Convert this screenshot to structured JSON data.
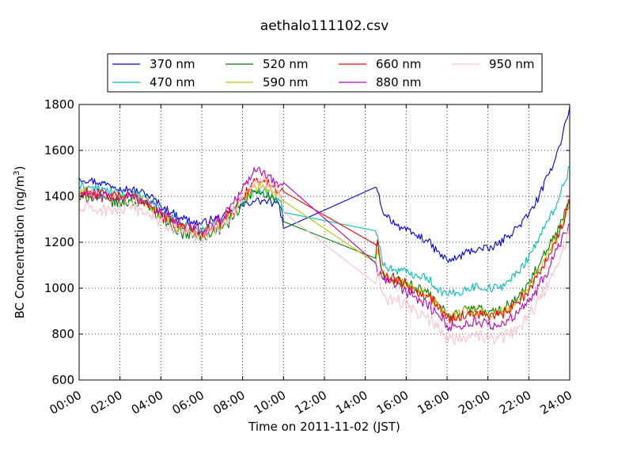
{
  "chart_data": {
    "type": "line",
    "title": "aethalo111102.csv",
    "xlabel": "Time on 2011-11-02 (JST)",
    "ylabel": "BC Concentration (ng/m",
    "ylabel_sup": "3",
    "ylabel_end": ")",
    "xlim": [
      0,
      24
    ],
    "ylim": [
      600,
      1800
    ],
    "grid": true,
    "legend_placement": "top-center",
    "x_ticks": [
      0,
      2,
      4,
      6,
      8,
      10,
      12,
      14,
      16,
      18,
      20,
      22,
      24
    ],
    "x_tick_labels": [
      "00:00",
      "02:00",
      "04:00",
      "06:00",
      "08:00",
      "10:00",
      "12:00",
      "14:00",
      "16:00",
      "18:00",
      "20:00",
      "22:00",
      "24:00"
    ],
    "y_ticks": [
      600,
      800,
      1000,
      1200,
      1400,
      1600,
      1800
    ],
    "y_tick_labels": [
      "600",
      "800",
      "1000",
      "1200",
      "1400",
      "1600",
      "1800"
    ],
    "series": [
      {
        "name": "370 nm",
        "color": "#0000ff",
        "noise": 18,
        "x": [
          0,
          0.5,
          1,
          1.5,
          2,
          2.5,
          3,
          3.5,
          4,
          4.5,
          5,
          5.5,
          6,
          6.5,
          7,
          7.5,
          8,
          8.5,
          9,
          9.5,
          9.8,
          10.0,
          14.5,
          14.6,
          14.8,
          15,
          15.5,
          16,
          16.5,
          17,
          17.5,
          18,
          18.5,
          19,
          19.5,
          20,
          20.5,
          21,
          21.5,
          22,
          22.5,
          23,
          23.5,
          24
        ],
        "y": [
          1480,
          1470,
          1460,
          1450,
          1440,
          1430,
          1420,
          1400,
          1360,
          1330,
          1310,
          1290,
          1280,
          1300,
          1310,
          1330,
          1360,
          1380,
          1380,
          1370,
          1360,
          1260,
          1440,
          1420,
          1350,
          1320,
          1280,
          1250,
          1230,
          1210,
          1160,
          1120,
          1130,
          1160,
          1170,
          1170,
          1190,
          1230,
          1270,
          1320,
          1400,
          1500,
          1620,
          1790
        ]
      },
      {
        "name": "470 nm",
        "color": "#00bfbf",
        "noise": 20,
        "x": [
          0,
          0.5,
          1,
          1.5,
          2,
          2.5,
          3,
          3.5,
          4,
          4.5,
          5,
          5.5,
          6,
          6.5,
          7,
          7.5,
          8,
          8.5,
          9,
          9.5,
          9.8,
          10.0,
          14.5,
          14.6,
          14.8,
          15,
          15.5,
          16,
          16.5,
          17,
          17.5,
          18,
          18.5,
          19,
          19.5,
          20,
          20.5,
          21,
          21.5,
          22,
          22.5,
          23,
          23.5,
          24
        ],
        "y": [
          1440,
          1440,
          1430,
          1420,
          1410,
          1410,
          1400,
          1380,
          1340,
          1310,
          1280,
          1260,
          1250,
          1270,
          1290,
          1330,
          1380,
          1420,
          1420,
          1400,
          1380,
          1330,
          1250,
          1230,
          1130,
          1090,
          1080,
          1070,
          1060,
          1050,
          1000,
          970,
          980,
          1000,
          1010,
          1000,
          1000,
          1030,
          1070,
          1140,
          1220,
          1300,
          1400,
          1530
        ]
      },
      {
        "name": "520 nm",
        "color": "#008000",
        "noise": 24,
        "x": [
          0,
          0.5,
          1,
          1.5,
          2,
          2.5,
          3,
          3.5,
          4,
          4.5,
          5,
          5.5,
          6,
          6.5,
          7,
          7.5,
          8,
          8.5,
          9,
          9.5,
          9.8,
          10.0,
          14.5,
          14.6,
          14.8,
          15,
          15.5,
          16,
          16.5,
          17,
          17.5,
          18,
          18.5,
          19,
          19.5,
          20,
          20.5,
          21,
          21.5,
          22,
          22.5,
          23,
          23.5,
          24
        ],
        "y": [
          1390,
          1400,
          1390,
          1380,
          1370,
          1380,
          1370,
          1350,
          1310,
          1270,
          1240,
          1230,
          1220,
          1240,
          1260,
          1300,
          1360,
          1420,
          1420,
          1390,
          1360,
          1290,
          1130,
          1210,
          1060,
          1040,
          1040,
          1020,
          1000,
          980,
          940,
          880,
          890,
          910,
          910,
          890,
          900,
          930,
          960,
          1020,
          1100,
          1180,
          1260,
          1380
        ]
      },
      {
        "name": "590 nm",
        "color": "#bfbf00",
        "noise": 24,
        "x": [
          0,
          0.5,
          1,
          1.5,
          2,
          2.5,
          3,
          3.5,
          4,
          4.5,
          5,
          5.5,
          6,
          6.5,
          7,
          7.5,
          8,
          8.5,
          9,
          9.5,
          9.8,
          10.0,
          14.5,
          14.6,
          14.8,
          15,
          15.5,
          16,
          16.5,
          17,
          17.5,
          18,
          18.5,
          19,
          19.5,
          20,
          20.5,
          21,
          21.5,
          22,
          22.5,
          23,
          23.5,
          24
        ],
        "y": [
          1420,
          1420,
          1410,
          1400,
          1400,
          1400,
          1390,
          1360,
          1320,
          1290,
          1260,
          1250,
          1240,
          1260,
          1280,
          1330,
          1390,
          1440,
          1450,
          1420,
          1400,
          1380,
          1110,
          1170,
          1060,
          1040,
          1030,
          1010,
          990,
          970,
          930,
          880,
          880,
          900,
          900,
          890,
          890,
          910,
          950,
          1000,
          1080,
          1170,
          1250,
          1370
        ]
      },
      {
        "name": "660 nm",
        "color": "#ff0000",
        "noise": 24,
        "x": [
          0,
          0.5,
          1,
          1.5,
          2,
          2.5,
          3,
          3.5,
          4,
          4.5,
          5,
          5.5,
          6,
          6.5,
          7,
          7.5,
          8,
          8.5,
          9,
          9.5,
          9.8,
          10.0,
          14.5,
          14.6,
          14.8,
          15,
          15.5,
          16,
          16.5,
          17,
          17.5,
          18,
          18.5,
          19,
          19.5,
          20,
          20.5,
          21,
          21.5,
          22,
          22.5,
          23,
          23.5,
          24
        ],
        "y": [
          1410,
          1420,
          1410,
          1400,
          1400,
          1400,
          1390,
          1360,
          1320,
          1290,
          1270,
          1250,
          1240,
          1260,
          1290,
          1340,
          1400,
          1460,
          1470,
          1440,
          1420,
          1420,
          1190,
          1210,
          1080,
          1050,
          1040,
          1020,
          990,
          970,
          930,
          870,
          870,
          890,
          890,
          880,
          880,
          900,
          940,
          990,
          1070,
          1150,
          1240,
          1380
        ]
      },
      {
        "name": "880 nm",
        "color": "#bf00bf",
        "noise": 26,
        "x": [
          0,
          0.5,
          1,
          1.5,
          2,
          2.5,
          3,
          3.5,
          4,
          4.5,
          5,
          5.5,
          6,
          6.5,
          7,
          7.5,
          8,
          8.5,
          9,
          9.5,
          9.8,
          10.0,
          14.5,
          14.6,
          14.8,
          15,
          15.5,
          16,
          16.5,
          17,
          17.5,
          18,
          18.5,
          19,
          19.5,
          20,
          20.5,
          21,
          21.5,
          22,
          22.5,
          23,
          23.5,
          24
        ],
        "y": [
          1400,
          1410,
          1400,
          1400,
          1390,
          1400,
          1390,
          1370,
          1330,
          1300,
          1280,
          1260,
          1250,
          1280,
          1310,
          1370,
          1440,
          1500,
          1510,
          1480,
          1450,
          1460,
          1110,
          1060,
          1050,
          1020,
          1010,
          980,
          960,
          930,
          890,
          840,
          830,
          850,
          850,
          840,
          840,
          860,
          890,
          940,
          1010,
          1090,
          1180,
          1280
        ]
      },
      {
        "name": "950 nm",
        "color": "#ffc0cb",
        "noise": 30,
        "x": [
          0,
          0.5,
          1,
          1.5,
          2,
          2.5,
          3,
          3.5,
          4,
          4.5,
          5,
          5.5,
          6,
          6.5,
          7,
          7.5,
          8,
          8.5,
          9,
          9.5,
          9.8,
          10.0,
          14.5,
          14.6,
          14.8,
          15,
          15.5,
          16,
          16.5,
          17,
          17.5,
          18,
          18.5,
          19,
          19.5,
          20,
          20.5,
          21,
          21.5,
          22,
          22.5,
          23,
          23.5,
          24
        ],
        "y": [
          1340,
          1350,
          1340,
          1340,
          1340,
          1350,
          1340,
          1320,
          1290,
          1260,
          1250,
          1230,
          1220,
          1250,
          1280,
          1330,
          1400,
          1460,
          1480,
          1450,
          1420,
          1330,
          1020,
          1070,
          990,
          960,
          950,
          920,
          900,
          870,
          830,
          790,
          780,
          790,
          790,
          780,
          780,
          800,
          830,
          880,
          950,
          1030,
          1110,
          1260
        ]
      }
    ]
  }
}
